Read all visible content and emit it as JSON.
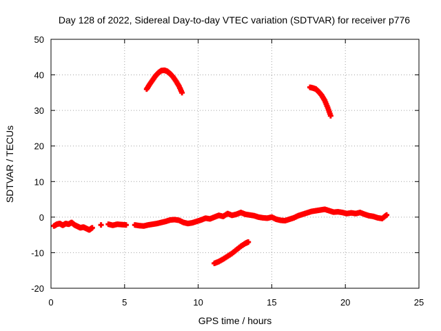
{
  "chart_data": {
    "type": "scatter",
    "title": "Day 128 of 2022, Sidereal Day-to-day VTEC variation (SDTVAR) for receiver p776",
    "xlabel": "GPS time / hours",
    "ylabel": "SDTVAR / TECUs",
    "xlim": [
      0,
      25
    ],
    "ylim": [
      -20,
      50
    ],
    "x_ticks": [
      0,
      5,
      10,
      15,
      20,
      25
    ],
    "y_ticks": [
      -20,
      -10,
      0,
      10,
      20,
      30,
      40,
      50
    ],
    "x_tick_labels": [
      "0",
      "5",
      "10",
      "15",
      "20",
      "25"
    ],
    "y_tick_labels": [
      "-20",
      "-10",
      "0",
      "10",
      "20",
      "30",
      "40",
      "50"
    ],
    "grid": true,
    "marker": "plus",
    "color": "#ff0000",
    "series": [
      {
        "name": "near-zero track",
        "points": [
          [
            0.2,
            -2.5
          ],
          [
            0.4,
            -2.0
          ],
          [
            0.6,
            -1.8
          ],
          [
            0.8,
            -2.3
          ],
          [
            1.0,
            -1.8
          ],
          [
            1.2,
            -2.0
          ],
          [
            1.4,
            -1.5
          ],
          [
            1.6,
            -2.2
          ],
          [
            1.8,
            -2.6
          ],
          [
            2.0,
            -3.0
          ],
          [
            2.2,
            -2.8
          ],
          [
            2.4,
            -3.2
          ],
          [
            2.6,
            -3.6
          ],
          [
            2.8,
            -3.0
          ],
          [
            3.4,
            -2.2
          ],
          [
            3.9,
            -2.0
          ],
          [
            4.2,
            -2.3
          ],
          [
            4.5,
            -2.0
          ],
          [
            4.8,
            -2.1
          ],
          [
            5.1,
            -2.2
          ],
          [
            5.7,
            -2.2
          ],
          [
            6.0,
            -2.4
          ],
          [
            6.3,
            -2.5
          ],
          [
            6.6,
            -2.2
          ],
          [
            6.9,
            -2.0
          ],
          [
            7.2,
            -1.8
          ],
          [
            7.5,
            -1.5
          ],
          [
            7.8,
            -1.2
          ],
          [
            8.1,
            -0.8
          ],
          [
            8.4,
            -0.7
          ],
          [
            8.7,
            -0.9
          ],
          [
            9.0,
            -1.5
          ],
          [
            9.3,
            -1.8
          ],
          [
            9.6,
            -1.6
          ],
          [
            9.9,
            -1.2
          ],
          [
            10.2,
            -0.8
          ],
          [
            10.5,
            -0.3
          ],
          [
            10.8,
            -0.5
          ],
          [
            11.1,
            0.0
          ],
          [
            11.4,
            0.5
          ],
          [
            11.7,
            0.2
          ],
          [
            12.0,
            1.0
          ],
          [
            12.3,
            0.5
          ],
          [
            12.6,
            0.8
          ],
          [
            12.9,
            1.3
          ],
          [
            13.2,
            0.8
          ],
          [
            13.5,
            0.6
          ],
          [
            13.8,
            0.4
          ],
          [
            14.1,
            0.0
          ],
          [
            14.4,
            -0.2
          ],
          [
            14.7,
            -0.3
          ],
          [
            15.0,
            0.0
          ],
          [
            15.3,
            -0.6
          ],
          [
            15.6,
            -0.9
          ],
          [
            15.9,
            -1.0
          ],
          [
            16.2,
            -0.6
          ],
          [
            16.5,
            -0.2
          ],
          [
            16.8,
            0.4
          ],
          [
            17.1,
            0.8
          ],
          [
            17.4,
            1.2
          ],
          [
            17.7,
            1.6
          ],
          [
            18.0,
            1.8
          ],
          [
            18.3,
            2.0
          ],
          [
            18.6,
            2.2
          ],
          [
            18.9,
            1.8
          ],
          [
            19.2,
            1.4
          ],
          [
            19.5,
            1.5
          ],
          [
            19.8,
            1.3
          ],
          [
            20.1,
            1.0
          ],
          [
            20.4,
            1.2
          ],
          [
            20.7,
            1.0
          ],
          [
            21.0,
            1.3
          ],
          [
            21.3,
            0.8
          ],
          [
            21.6,
            0.4
          ],
          [
            21.9,
            0.2
          ],
          [
            22.2,
            -0.2
          ],
          [
            22.5,
            -0.4
          ],
          [
            22.8,
            0.6
          ]
        ]
      },
      {
        "name": "arc ~8h",
        "points": [
          [
            6.5,
            36.0
          ],
          [
            6.7,
            37.3
          ],
          [
            6.9,
            38.5
          ],
          [
            7.1,
            39.7
          ],
          [
            7.3,
            40.6
          ],
          [
            7.5,
            41.2
          ],
          [
            7.7,
            41.3
          ],
          [
            7.9,
            41.0
          ],
          [
            8.1,
            40.3
          ],
          [
            8.3,
            39.4
          ],
          [
            8.5,
            38.2
          ],
          [
            8.7,
            36.8
          ],
          [
            8.9,
            35.0
          ]
        ]
      },
      {
        "name": "arc ~18h",
        "points": [
          [
            17.6,
            36.5
          ],
          [
            17.8,
            36.3
          ],
          [
            18.0,
            36.0
          ],
          [
            18.2,
            35.2
          ],
          [
            18.4,
            34.2
          ],
          [
            18.6,
            32.8
          ],
          [
            18.8,
            30.8
          ],
          [
            19.0,
            28.5
          ]
        ]
      },
      {
        "name": "descending pass ~12h",
        "points": [
          [
            11.1,
            -13.0
          ],
          [
            11.4,
            -12.5
          ],
          [
            11.7,
            -11.8
          ],
          [
            12.0,
            -11.0
          ],
          [
            12.3,
            -10.2
          ],
          [
            12.6,
            -9.2
          ],
          [
            12.9,
            -8.2
          ],
          [
            13.2,
            -7.4
          ],
          [
            13.4,
            -7.0
          ]
        ]
      }
    ]
  }
}
